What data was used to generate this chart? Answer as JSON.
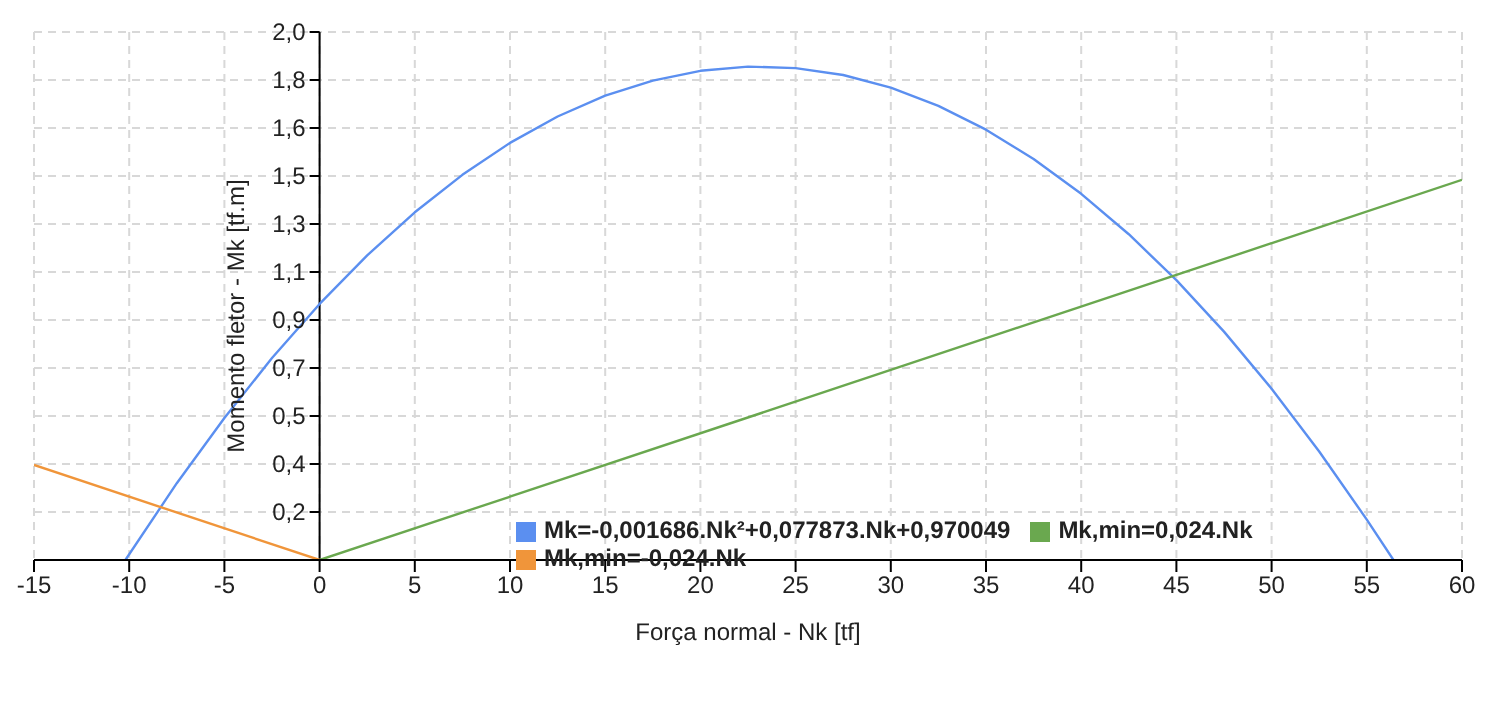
{
  "chart_data": {
    "type": "line",
    "xlabel": "Força normal - Nk [tf]",
    "ylabel": "Momento fletor - Mk [tf.m]",
    "xlim": [
      -15,
      60
    ],
    "xticks": [
      -15,
      -10,
      -5,
      0,
      5,
      10,
      15,
      20,
      25,
      30,
      35,
      40,
      45,
      50,
      55,
      60
    ],
    "ylim": [
      0,
      2
    ],
    "yticks": [
      {
        "value": 0.1818,
        "label": "0,2"
      },
      {
        "value": 0.3636,
        "label": "0,4"
      },
      {
        "value": 0.5455,
        "label": "0,5"
      },
      {
        "value": 0.7273,
        "label": "0,7"
      },
      {
        "value": 0.9091,
        "label": "0,9"
      },
      {
        "value": 1.0909,
        "label": "1,1"
      },
      {
        "value": 1.2727,
        "label": "1,3"
      },
      {
        "value": 1.4545,
        "label": "1,5"
      },
      {
        "value": 1.6364,
        "label": "1,6"
      },
      {
        "value": 1.8182,
        "label": "1,8"
      },
      {
        "value": 2,
        "label": "2,0"
      }
    ],
    "grid": true,
    "legend": "bottom",
    "marker": "none",
    "line_style": "solid",
    "series": [
      {
        "name": "Mk=-0,001686.Nk²+0,077873.Nk+0,970049",
        "color": "#5b8ff0",
        "x": [
          -10.2,
          -7.5,
          -5,
          -2.5,
          0,
          2.5,
          5,
          7.5,
          10,
          12.5,
          15,
          17.5,
          20,
          22.5,
          25,
          27.5,
          30,
          32.5,
          35,
          37.5,
          40,
          42.5,
          45,
          47.5,
          50,
          52.5,
          55,
          56.4
        ],
        "values": [
          0,
          0.291,
          0.538,
          0.765,
          0.97,
          1.154,
          1.317,
          1.459,
          1.58,
          1.68,
          1.759,
          1.816,
          1.853,
          1.869,
          1.863,
          1.837,
          1.789,
          1.72,
          1.63,
          1.519,
          1.387,
          1.234,
          1.06,
          0.865,
          0.649,
          0.411,
          0.153,
          0
        ]
      },
      {
        "name": "Mk,min=0,024.Nk",
        "color": "#6aa84f",
        "x": [
          0,
          60
        ],
        "values": [
          0,
          1.44
        ]
      },
      {
        "name": "Mk,min=-0,024.Nk",
        "color": "#f0953a",
        "x": [
          -15,
          0
        ],
        "values": [
          0.36,
          0
        ]
      }
    ]
  }
}
